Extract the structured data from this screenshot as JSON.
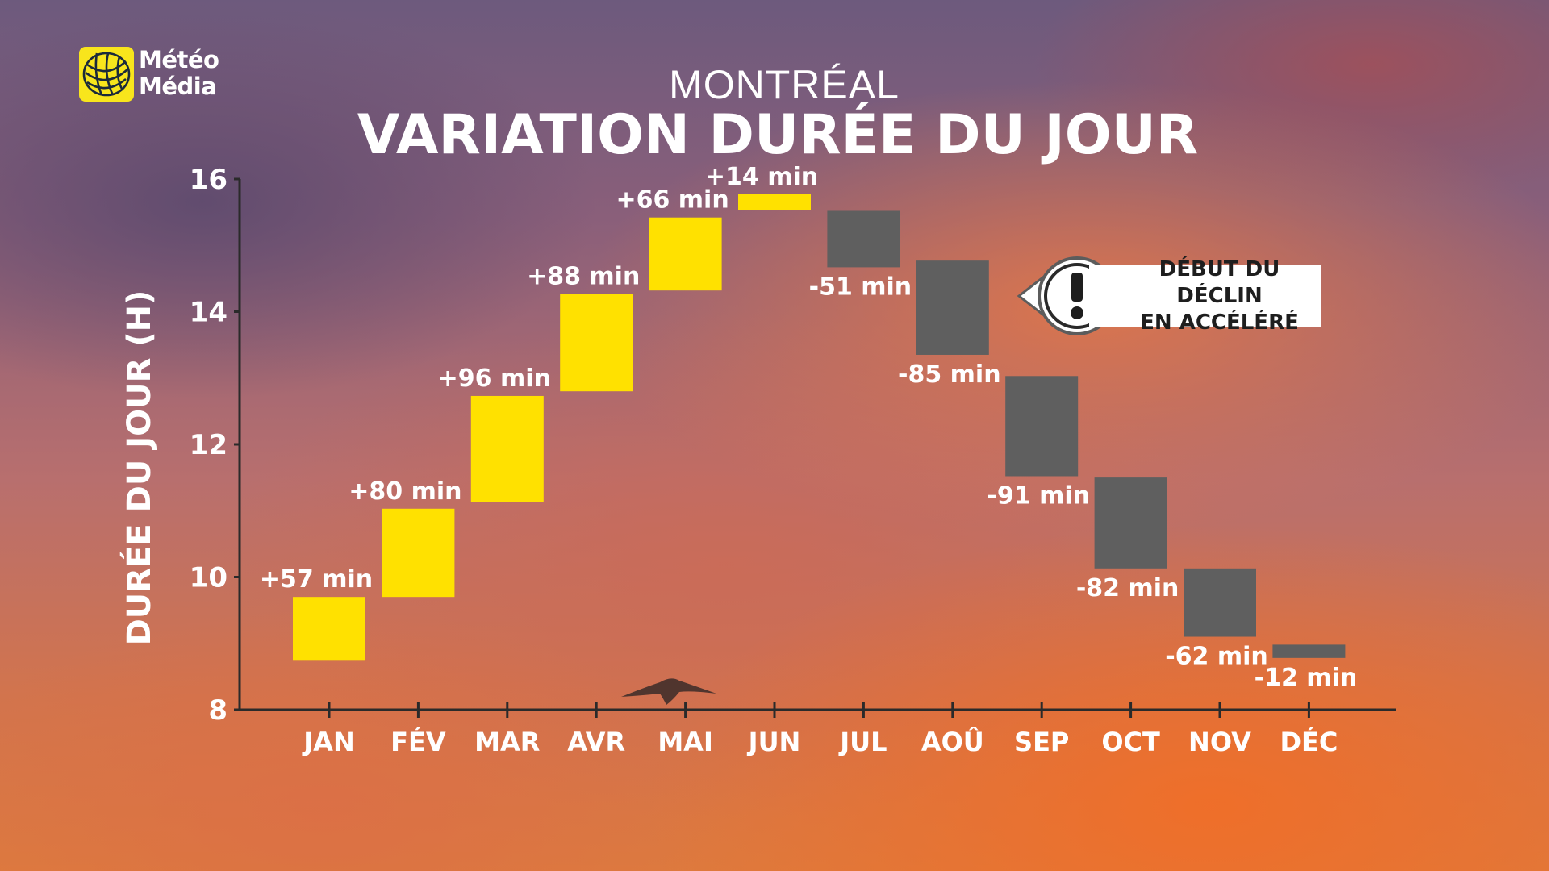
{
  "brand": {
    "line1": "Météo",
    "line2": "Média"
  },
  "callout": {
    "line1": "DÉBUT DU DÉCLIN",
    "line2": "EN ACCÉLÉRÉ",
    "symbol": "!"
  },
  "colors": {
    "increase": "#ffe100",
    "decrease": "#5f5f5f",
    "text": "#ffffff",
    "axis": "#2a2a2a"
  },
  "chart_data": {
    "type": "bar",
    "subtype": "floating-waterfall",
    "title": "MONTRÉAL",
    "subtitle": "VARIATION DURÉE DU JOUR",
    "ylabel": "DURÉE DU JOUR (H)",
    "ylim": [
      8,
      16
    ],
    "yticks": [
      8,
      10,
      12,
      14,
      16
    ],
    "grid": false,
    "categories": [
      "JAN",
      "FÉV",
      "MAR",
      "AVR",
      "MAI",
      "JUN",
      "JUL",
      "AOÛ",
      "SEP",
      "OCT",
      "NOV",
      "DÉC"
    ],
    "bars": [
      {
        "start": 8.75,
        "end": 9.7,
        "label": "+57 min"
      },
      {
        "start": 9.7,
        "end": 11.03,
        "label": "+80 min"
      },
      {
        "start": 11.13,
        "end": 12.73,
        "label": "+96 min"
      },
      {
        "start": 12.8,
        "end": 14.27,
        "label": "+88 min"
      },
      {
        "start": 14.32,
        "end": 15.42,
        "label": "+66 min"
      },
      {
        "start": 15.53,
        "end": 15.77,
        "label": "+14 min"
      },
      {
        "start": 15.52,
        "end": 14.67,
        "label": "-51 min"
      },
      {
        "start": 14.77,
        "end": 13.35,
        "label": "-85 min"
      },
      {
        "start": 13.03,
        "end": 11.52,
        "label": "-91 min"
      },
      {
        "start": 11.5,
        "end": 10.13,
        "label": "-82 min"
      },
      {
        "start": 10.13,
        "end": 9.1,
        "label": "-62 min"
      },
      {
        "start": 8.98,
        "end": 8.78,
        "label": "-12 min"
      }
    ]
  }
}
